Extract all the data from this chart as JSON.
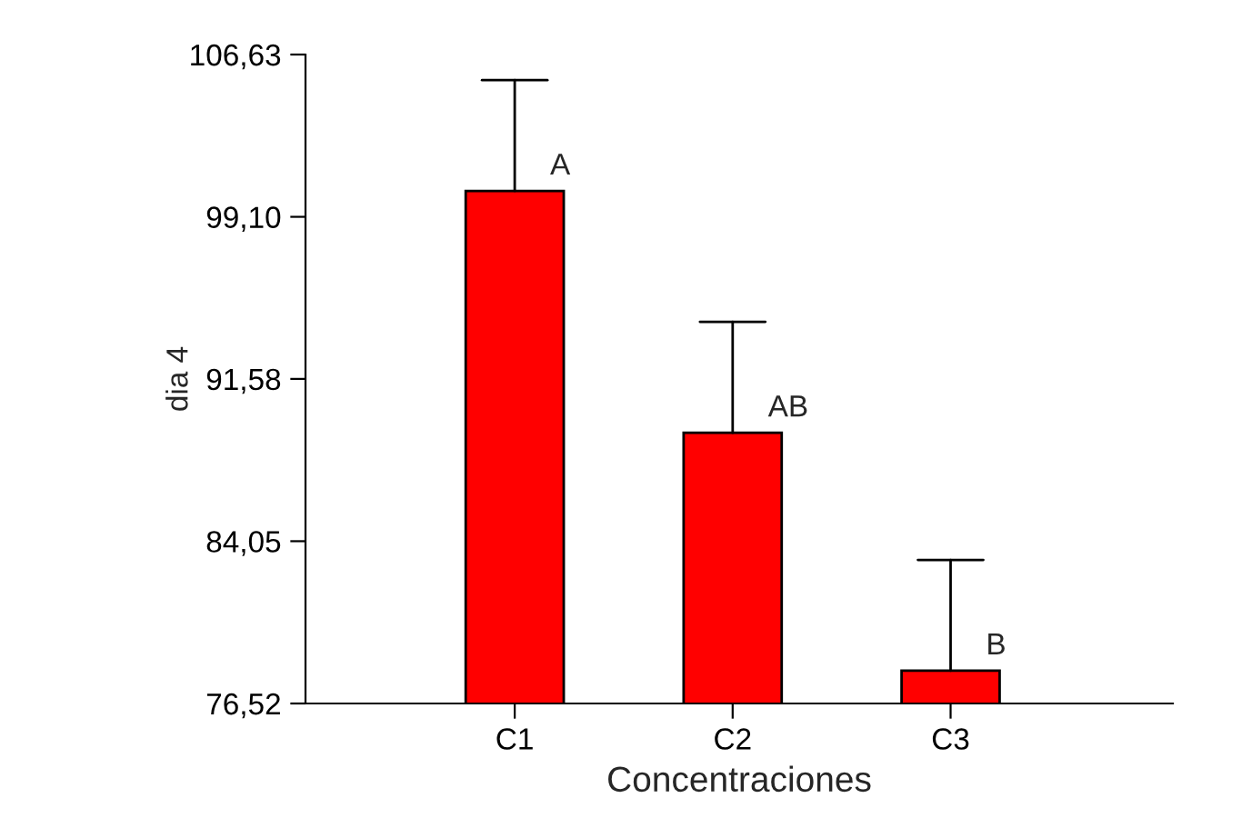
{
  "chart_data": {
    "type": "bar",
    "xlabel": "Concentraciones",
    "ylabel": "dia 4",
    "categories": [
      "C1",
      "C2",
      "C3"
    ],
    "series": [
      {
        "color": "#ff0000",
        "values": [
          100.3,
          89.08,
          78.04
        ],
        "errors": [
          [
            100.3,
            105.44
          ],
          [
            89.08,
            94.23
          ],
          [
            78.04,
            83.18
          ]
        ]
      }
    ],
    "ylim": [
      76.52,
      106.63
    ],
    "yticks": [
      {
        "value": 76.52,
        "label": "76,52"
      },
      {
        "value": 84.05,
        "label": "84,05"
      },
      {
        "value": 91.58,
        "label": "91,58"
      },
      {
        "value": 99.1,
        "label": "99,10"
      },
      {
        "value": 106.63,
        "label": "106,63"
      }
    ],
    "annotations": [
      {
        "text": "A",
        "x": "C1",
        "y": 100.3
      },
      {
        "text": "AB",
        "x": "C2",
        "y": 89.08
      },
      {
        "text": "B",
        "x": "C3",
        "y": 78.04
      }
    ],
    "grid": false,
    "legend": false
  }
}
